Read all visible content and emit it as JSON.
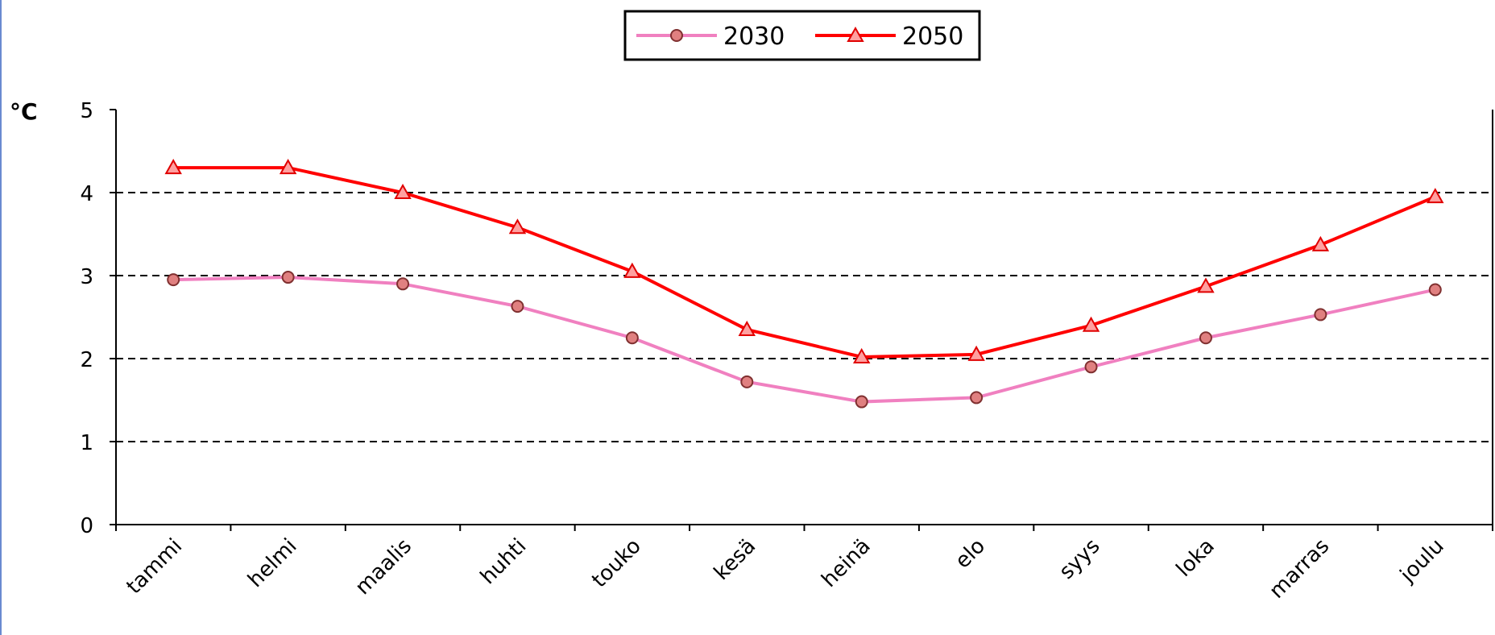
{
  "chart_data": {
    "type": "line",
    "y_label": "°C",
    "categories": [
      "tammi",
      "helmi",
      "maalis",
      "huhti",
      "touko",
      "kesä",
      "heinä",
      "elo",
      "syys",
      "loka",
      "marras",
      "joulu"
    ],
    "series": [
      {
        "name": "2030",
        "color": "#f080c0",
        "marker": "circle",
        "values": [
          2.95,
          2.98,
          2.9,
          2.63,
          2.25,
          1.72,
          1.48,
          1.53,
          1.9,
          2.25,
          2.53,
          2.83
        ]
      },
      {
        "name": "2050",
        "color": "#ff0000",
        "marker": "triangle",
        "values": [
          4.3,
          4.3,
          4.0,
          3.58,
          3.05,
          2.35,
          2.02,
          2.05,
          2.4,
          2.87,
          3.37,
          3.95
        ]
      }
    ],
    "ylim": [
      0,
      5
    ],
    "yticks": [
      0,
      1,
      2,
      3,
      4,
      5
    ],
    "grid": true,
    "legend": "top"
  }
}
